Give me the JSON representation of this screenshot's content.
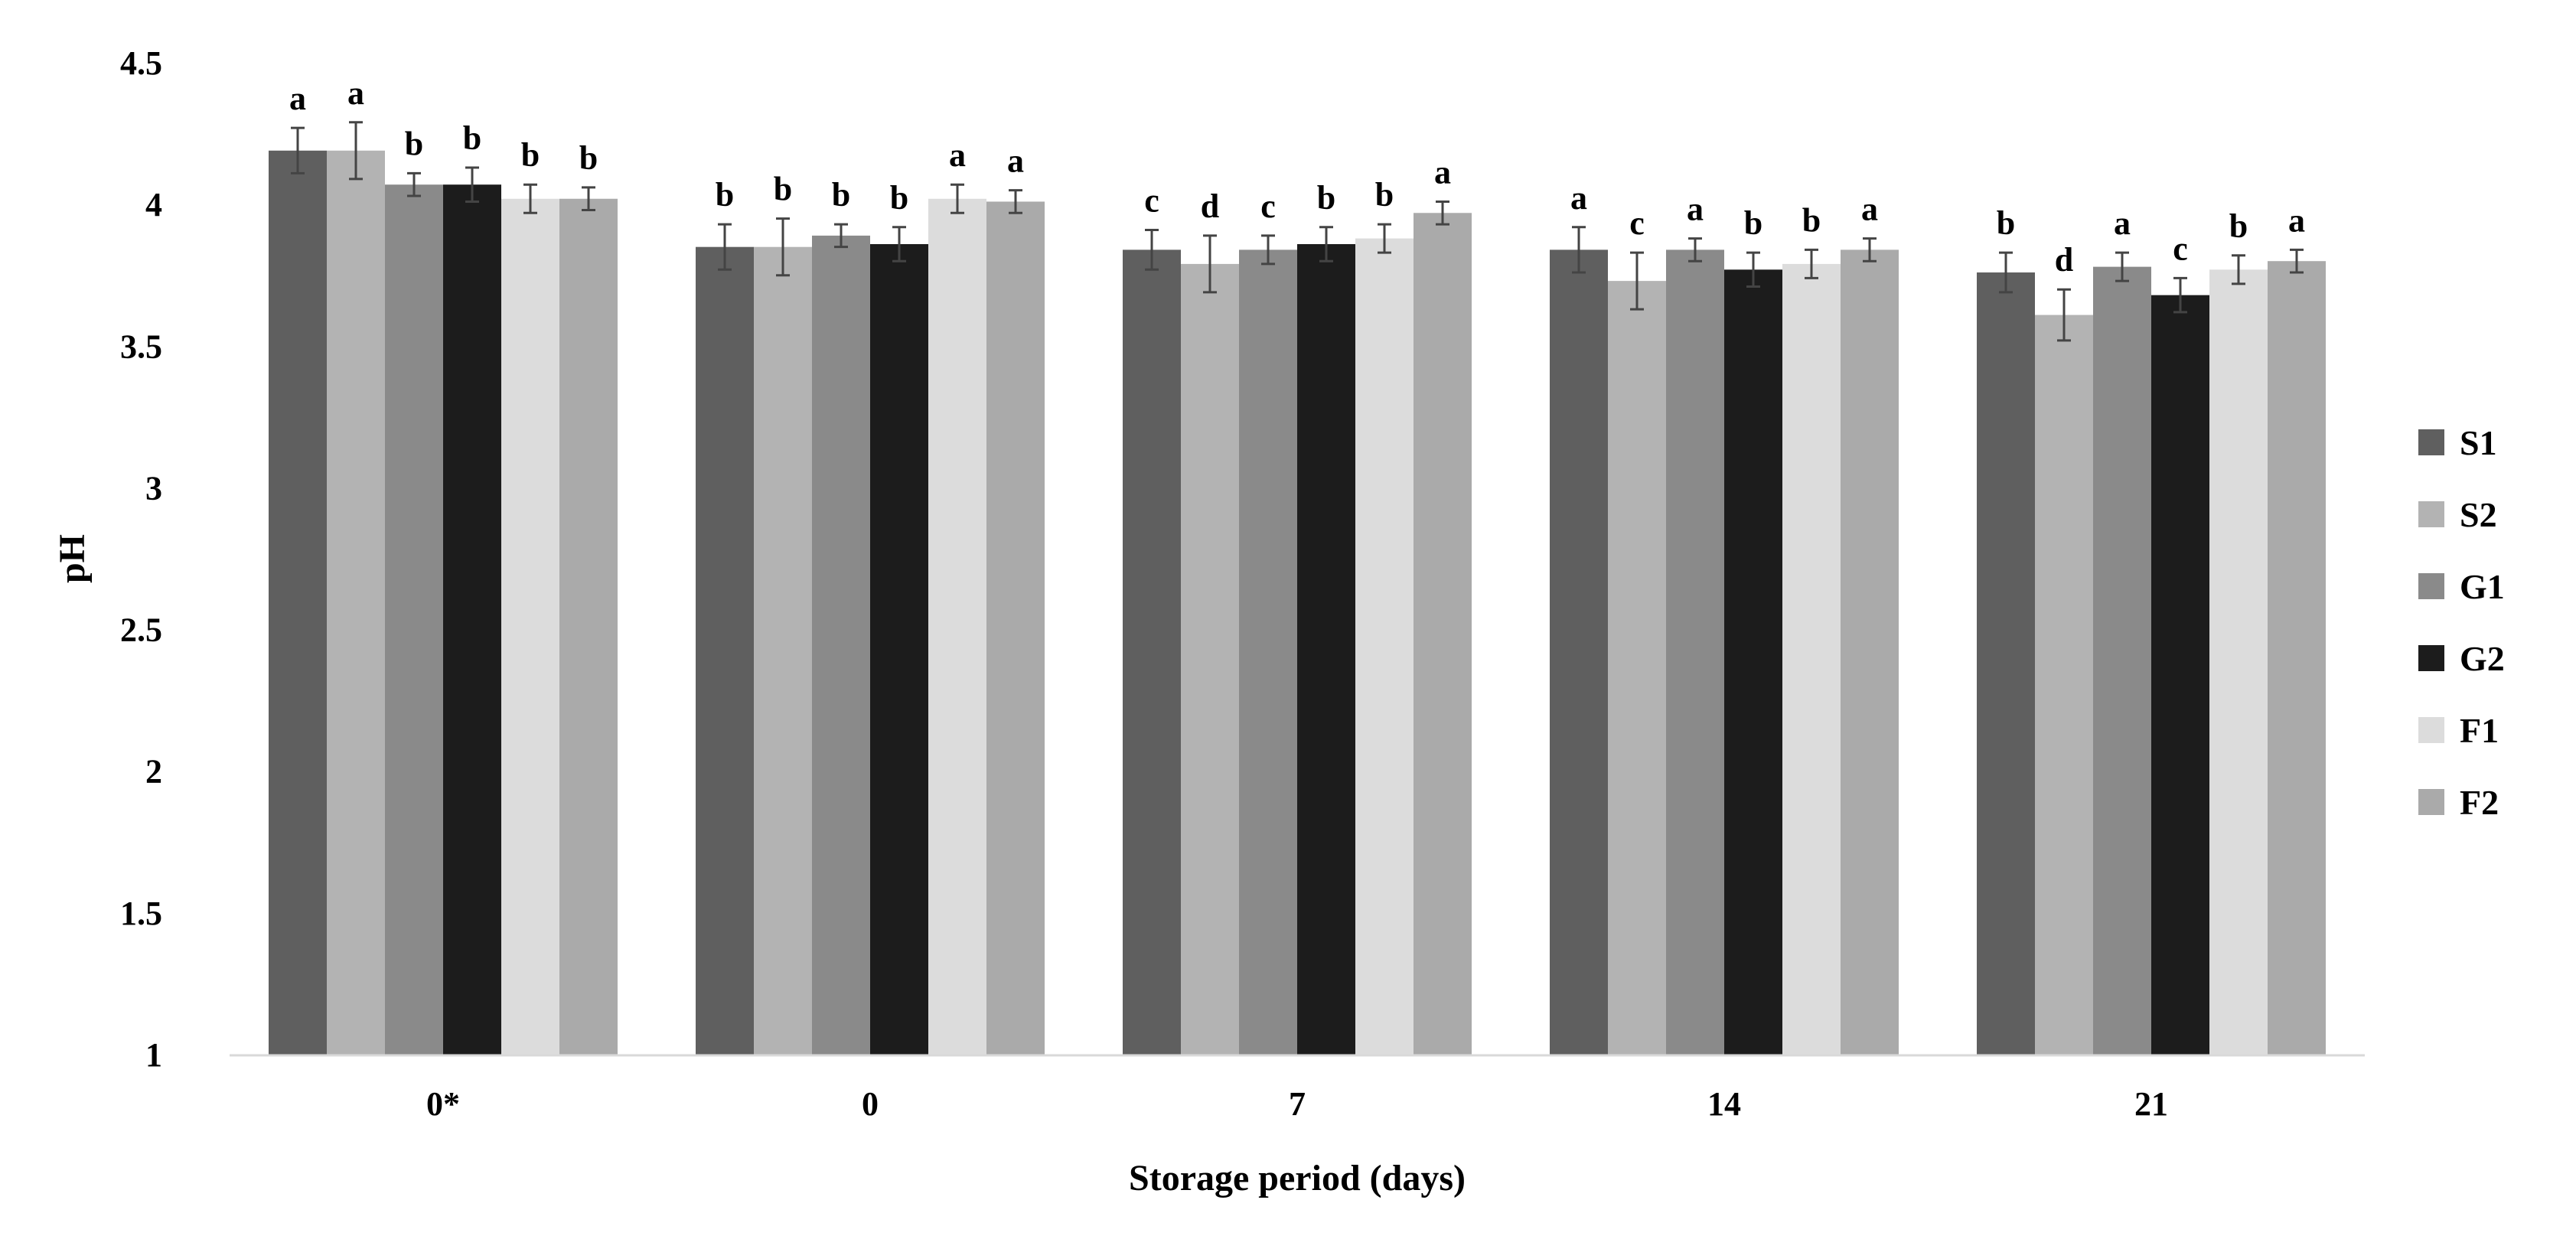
{
  "chart_data": {
    "type": "bar",
    "title": "",
    "xlabel": "Storage period (days)",
    "ylabel": "pH",
    "ylim": [
      1,
      4.5
    ],
    "yticks": [
      "1",
      "1.5",
      "2",
      "2.5",
      "3",
      "3.5",
      "4",
      "4.5"
    ],
    "grid": false,
    "legend_position": "right",
    "categories": [
      "0*",
      "0",
      "7",
      "14",
      "21"
    ],
    "series": [
      {
        "name": "S1",
        "color": "#5f5f5f",
        "values": [
          4.19,
          3.85,
          3.84,
          3.84,
          3.76
        ],
        "errors": [
          0.08,
          0.08,
          0.07,
          0.08,
          0.07
        ],
        "letters": [
          "a",
          "b",
          "c",
          "a",
          "b"
        ]
      },
      {
        "name": "S2",
        "color": "#b3b3b3",
        "values": [
          4.19,
          3.85,
          3.79,
          3.73,
          3.61
        ],
        "errors": [
          0.1,
          0.1,
          0.1,
          0.1,
          0.09
        ],
        "letters": [
          "a",
          "b",
          "d",
          "c",
          "d"
        ]
      },
      {
        "name": "G1",
        "color": "#8a8a8a",
        "values": [
          4.07,
          3.89,
          3.84,
          3.84,
          3.78
        ],
        "errors": [
          0.04,
          0.04,
          0.05,
          0.04,
          0.05
        ],
        "letters": [
          "b",
          "b",
          "c",
          "a",
          "a"
        ]
      },
      {
        "name": "G2",
        "color": "#1c1c1c",
        "values": [
          4.07,
          3.86,
          3.86,
          3.77,
          3.68
        ],
        "errors": [
          0.06,
          0.06,
          0.06,
          0.06,
          0.06
        ],
        "letters": [
          "b",
          "b",
          "b",
          "b",
          "c"
        ]
      },
      {
        "name": "F1",
        "color": "#dcdcdc",
        "values": [
          4.02,
          4.02,
          3.88,
          3.79,
          3.77
        ],
        "errors": [
          0.05,
          0.05,
          0.05,
          0.05,
          0.05
        ],
        "letters": [
          "b",
          "a",
          "b",
          "b",
          "b"
        ]
      },
      {
        "name": "F2",
        "color": "#aaaaaa",
        "values": [
          4.02,
          4.01,
          3.97,
          3.84,
          3.8
        ],
        "errors": [
          0.04,
          0.04,
          0.04,
          0.04,
          0.04
        ],
        "letters": [
          "b",
          "a",
          "a",
          "a",
          "a"
        ]
      }
    ]
  }
}
